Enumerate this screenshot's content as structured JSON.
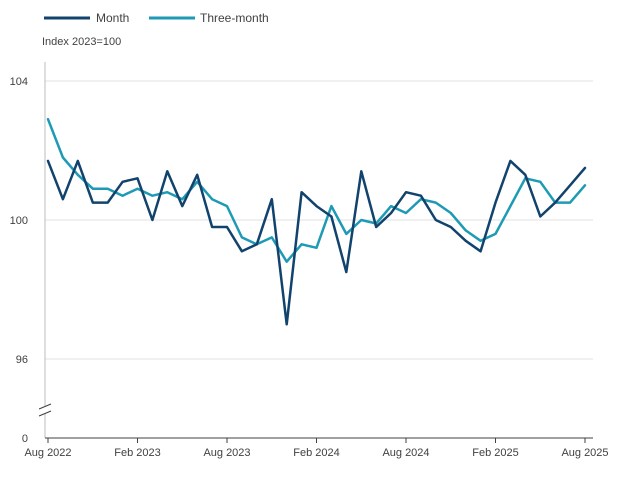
{
  "chart_data": {
    "type": "line",
    "title": "",
    "xlabel": "",
    "ylabel": "Index 2023=100",
    "ylim": [
      0,
      105
    ],
    "axis_break": true,
    "y_ticks": [
      0,
      96,
      100,
      104
    ],
    "x_tick_labels": [
      "Aug 2022",
      "Feb 2023",
      "Aug 2023",
      "Feb 2024",
      "Aug 2024",
      "Feb 2025",
      "Aug 2025"
    ],
    "legend_position": "top-left",
    "grid": "horizontal",
    "x": [
      "Aug 2022",
      "Sep 2022",
      "Oct 2022",
      "Nov 2022",
      "Dec 2022",
      "Jan 2023",
      "Feb 2023",
      "Mar 2023",
      "Apr 2023",
      "May 2023",
      "Jun 2023",
      "Jul 2023",
      "Aug 2023",
      "Sep 2023",
      "Oct 2023",
      "Nov 2023",
      "Dec 2023",
      "Jan 2024",
      "Feb 2024",
      "Mar 2024",
      "Apr 2024",
      "May 2024",
      "Jun 2024",
      "Jul 2024",
      "Aug 2024",
      "Sep 2024",
      "Oct 2024",
      "Nov 2024",
      "Dec 2024",
      "Jan 2025",
      "Feb 2025",
      "Mar 2025",
      "Apr 2025",
      "May 2025",
      "Jun 2025",
      "Jul 2025",
      "Aug 2025"
    ],
    "series": [
      {
        "name": "Month",
        "color": "#12436d",
        "values": [
          101.7,
          100.6,
          101.7,
          100.5,
          100.5,
          101.1,
          101.2,
          100.0,
          101.4,
          100.4,
          101.3,
          99.8,
          99.8,
          99.1,
          99.3,
          100.6,
          97.0,
          100.8,
          100.4,
          100.1,
          98.5,
          101.4,
          99.8,
          100.2,
          100.8,
          100.7,
          100.0,
          99.8,
          99.4,
          99.1,
          100.5,
          101.7,
          101.3,
          100.1,
          100.5,
          101.0,
          101.5
        ]
      },
      {
        "name": "Three-month",
        "color": "#1f9ab5",
        "values": [
          102.9,
          101.8,
          101.3,
          100.9,
          100.9,
          100.7,
          100.9,
          100.7,
          100.8,
          100.6,
          101.1,
          100.6,
          100.4,
          99.5,
          99.3,
          99.5,
          98.8,
          99.3,
          99.2,
          100.4,
          99.6,
          100.0,
          99.9,
          100.4,
          100.2,
          100.6,
          100.5,
          100.2,
          99.7,
          99.4,
          99.6,
          100.4,
          101.2,
          101.1,
          100.5,
          100.5,
          101.0
        ]
      }
    ]
  }
}
